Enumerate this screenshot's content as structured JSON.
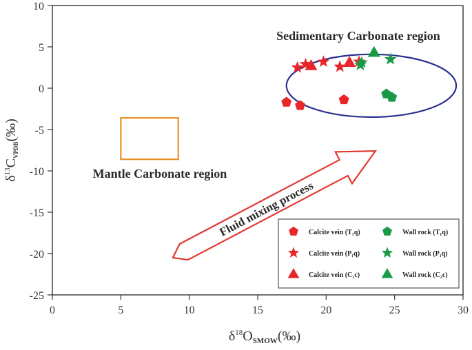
{
  "chart_data": {
    "type": "scatter",
    "xlim": [
      0,
      30
    ],
    "ylim": [
      -25,
      10
    ],
    "x_ticks": [
      "0",
      "5",
      "10",
      "15",
      "20",
      "25",
      "30"
    ],
    "y_ticks": [
      "10",
      "5",
      "0",
      "-5",
      "-10",
      "-15",
      "-20",
      "-25"
    ],
    "xlabel": {
      "delta": "δ",
      "sup": "18",
      "main": "O",
      "sub": "SMOW",
      "unit": "(‰)"
    },
    "ylabel": {
      "delta": "δ",
      "sup": "13",
      "main": "C",
      "sub": "VPDB",
      "unit": "(‰)"
    },
    "regions": {
      "sedimentary": {
        "label": "Sedimentary Carbonate region",
        "center": [
          23.3,
          0.3
        ],
        "radii": [
          6.2,
          3.8
        ],
        "color": "#2b2f8f"
      },
      "mantle": {
        "label": "Mantle Carbonate region",
        "x_range": [
          5,
          9.2
        ],
        "y_range": [
          -8.6,
          -3.6
        ],
        "color": "#e8902a"
      }
    },
    "process_arrow": {
      "label": "Fluid mixing process",
      "from": [
        8.8,
        -20.5
      ],
      "to": [
        23.6,
        -7.6
      ],
      "color": "#e03a2f"
    },
    "series": [
      {
        "name": "Calcite vein (T₁q)",
        "marker": "pentagon",
        "color": "#e8262a",
        "points": [
          [
            17.1,
            -1.7
          ],
          [
            18.1,
            -2.1
          ],
          [
            21.3,
            -1.4
          ]
        ]
      },
      {
        "name": "Calcite vein (P₁q)",
        "marker": "star",
        "color": "#e8262a",
        "points": [
          [
            17.9,
            2.5
          ],
          [
            18.5,
            2.9
          ],
          [
            19.8,
            3.2
          ],
          [
            21.0,
            2.6
          ],
          [
            22.4,
            3.2
          ]
        ]
      },
      {
        "name": "Calcite vein (C₂c)",
        "marker": "triangle",
        "color": "#e8262a",
        "points": [
          [
            18.9,
            2.7
          ],
          [
            21.7,
            3.1
          ]
        ]
      },
      {
        "name": "Wall rock (T₁q)",
        "marker": "pentagon",
        "color": "#1a9a48",
        "points": [
          [
            24.4,
            -0.7
          ],
          [
            24.8,
            -1.1
          ]
        ]
      },
      {
        "name": "Wall rock (P₁q)",
        "marker": "star",
        "color": "#1a9a48",
        "points": [
          [
            22.5,
            2.8
          ],
          [
            22.6,
            3.1
          ],
          [
            24.7,
            3.5
          ]
        ]
      },
      {
        "name": "Wall rock (C₂c)",
        "marker": "triangle",
        "color": "#1a9a48",
        "points": [
          [
            23.5,
            4.3
          ]
        ]
      }
    ]
  }
}
